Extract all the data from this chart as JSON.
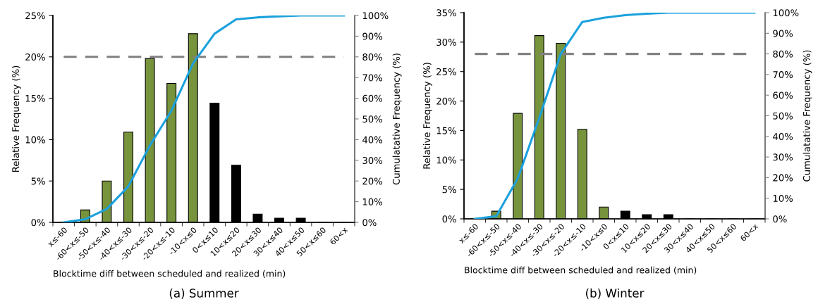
{
  "chart_data": [
    {
      "type": "bar",
      "title": "(a) Summer",
      "xlabel": "Blocktime diff between scheduled and realized (min)",
      "ylabel": "Relative Frequency (%)",
      "y2label": "Cumulatative Frequency (%)",
      "categories": [
        "x≤-60",
        "-60<x≤-50",
        "-50<x≤-40",
        "-40<x≤-30",
        "-30<x≤-20",
        "-20<x≤-10",
        "-10<x≤0",
        "0<x≤10",
        "10<x≤20",
        "20<x≤30",
        "30<x≤40",
        "40<x≤50",
        "50<x≤60",
        "60<x"
      ],
      "series": [
        {
          "colors": [
            "#77933c",
            "#77933c",
            "#77933c",
            "#77933c",
            "#77933c",
            "#77933c",
            "#77933c",
            "#000000",
            "#000000",
            "#000000",
            "#000000",
            "#000000",
            "#000000",
            "#000000"
          ],
          "values": [
            0,
            1.5,
            5,
            10.9,
            19.8,
            16.8,
            22.8,
            14.4,
            6.9,
            1.0,
            0.5,
            0.5,
            0,
            0
          ]
        },
        {
          "type": "line",
          "axis": "y2",
          "color": "#1ba1dc",
          "values": [
            0,
            1.5,
            6.5,
            17.4,
            37.2,
            54,
            76.8,
            91.2,
            98.1,
            99.1,
            99.6,
            100,
            100,
            100
          ]
        }
      ],
      "ylim": [
        0,
        25
      ],
      "yticks": [
        {
          "value": 0,
          "label": "0%"
        },
        {
          "value": 5,
          "label": "5%"
        },
        {
          "value": 10,
          "label": "10%"
        },
        {
          "value": 15,
          "label": "15%"
        },
        {
          "value": 20,
          "label": "20%"
        },
        {
          "value": 25,
          "label": "25%"
        }
      ],
      "y2lim": [
        0,
        100
      ],
      "y2ticks": [
        {
          "value": 0,
          "label": "0%"
        },
        {
          "value": 10,
          "label": "10%"
        },
        {
          "value": 20,
          "label": "20%"
        },
        {
          "value": 30,
          "label": "30%"
        },
        {
          "value": 40,
          "label": "40%"
        },
        {
          "value": 50,
          "label": "50%"
        },
        {
          "value": 60,
          "label": "60%"
        },
        {
          "value": 70,
          "label": "70%"
        },
        {
          "value": 80,
          "label": "80%"
        },
        {
          "value": 90,
          "label": "90%"
        },
        {
          "value": 100,
          "label": "100%"
        }
      ],
      "ref_lines": [
        {
          "axis": "y2",
          "value": 80,
          "color": "#808080",
          "line_style": "dashed"
        }
      ]
    },
    {
      "type": "bar",
      "title": "(b) Winter",
      "xlabel": "Blocktime diff between scheduled and realized (min)",
      "ylabel": "Relative Frequency (%)",
      "y2label": "Cumulatative Frequency (%)",
      "categories": [
        "x≤-60",
        "-60<x≤-50",
        "-50<x≤-40",
        "-40<x≤-30",
        "-30<x≤-20",
        "-20<x≤-10",
        "-10<x≤0",
        "0<x≤10",
        "10<x≤20",
        "20<x≤30",
        "30<x≤40",
        "40<x≤50",
        "50<x≤60",
        "60<x"
      ],
      "series": [
        {
          "colors": [
            "#77933c",
            "#77933c",
            "#77933c",
            "#77933c",
            "#77933c",
            "#77933c",
            "#77933c",
            "#000000",
            "#000000",
            "#000000",
            "#000000",
            "#000000",
            "#000000",
            "#000000"
          ],
          "values": [
            0,
            1.3,
            17.9,
            31.1,
            29.8,
            15.2,
            2.0,
            1.3,
            0.7,
            0.7,
            0,
            0,
            0,
            0
          ]
        },
        {
          "type": "line",
          "axis": "y2",
          "color": "#1ba1dc",
          "values": [
            0,
            1.3,
            19.6,
            49,
            80,
            95.5,
            97.5,
            98.8,
            99.5,
            100,
            100,
            100,
            100,
            100
          ]
        }
      ],
      "ylim": [
        0,
        35
      ],
      "yticks": [
        {
          "value": 0,
          "label": "0%"
        },
        {
          "value": 5,
          "label": "5%"
        },
        {
          "value": 10,
          "label": "10%"
        },
        {
          "value": 15,
          "label": "15%"
        },
        {
          "value": 20,
          "label": "20%"
        },
        {
          "value": 25,
          "label": "25%"
        },
        {
          "value": 30,
          "label": "30%"
        },
        {
          "value": 35,
          "label": "35%"
        }
      ],
      "y2lim": [
        0,
        100
      ],
      "y2ticks": [
        {
          "value": 0,
          "label": "0%"
        },
        {
          "value": 10,
          "label": "10%"
        },
        {
          "value": 20,
          "label": "20%"
        },
        {
          "value": 30,
          "label": "30%"
        },
        {
          "value": 40,
          "label": "40%"
        },
        {
          "value": 50,
          "label": "50%"
        },
        {
          "value": 60,
          "label": "60%"
        },
        {
          "value": 70,
          "label": "70%"
        },
        {
          "value": 80,
          "label": "80%"
        },
        {
          "value": 90,
          "label": "90%"
        },
        {
          "value": 100,
          "label": "100%"
        }
      ],
      "ref_lines": [
        {
          "axis": "y2",
          "value": 80,
          "color": "#808080",
          "line_style": "dashed"
        }
      ]
    }
  ]
}
